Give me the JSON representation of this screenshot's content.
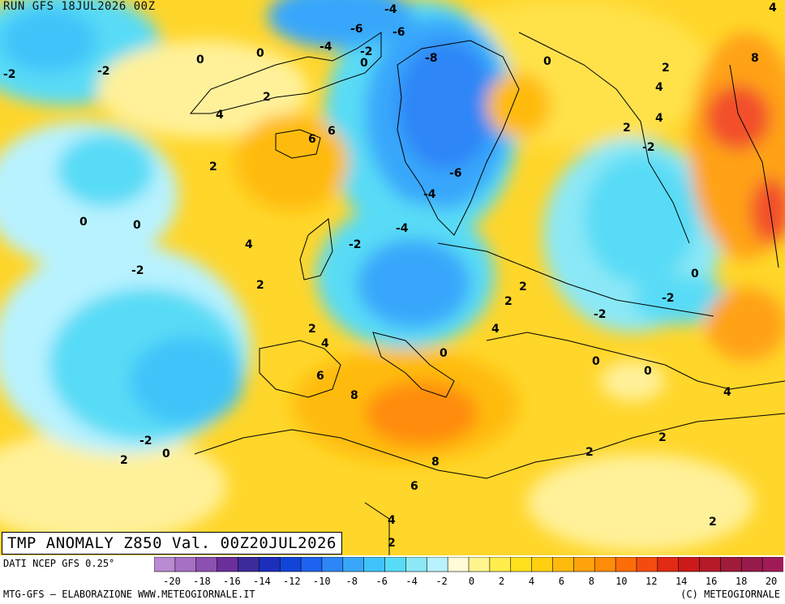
{
  "header": {
    "run_label": "RUN GFS 18JUL2026 00Z"
  },
  "map": {
    "variable_title": "TMP ANOMALY Z850 Val. 00Z20JUL2026",
    "isoline_labels": [
      "-4",
      "-6",
      "-6",
      "-4",
      "-2",
      "0",
      "-8",
      "-2",
      "0",
      "0",
      "0",
      "2",
      "4",
      "6",
      "6",
      "2",
      "4",
      "2",
      "4",
      "2",
      "-4",
      "-4",
      "-2",
      "-6",
      "-2",
      "4",
      "0",
      "0",
      "-2",
      "2",
      "-2",
      "0",
      "2",
      "2",
      "4",
      "0",
      "-2",
      "2",
      "0",
      "6",
      "8",
      "8",
      "6",
      "4",
      "2",
      "-2",
      "0",
      "2",
      "0",
      "2",
      "2",
      "-2",
      "4",
      "4",
      "8",
      "2",
      "4"
    ],
    "colors": {
      "very_cold": "#4fa0ff",
      "cold": "#2bd0ff",
      "cool": "#b8f2ff",
      "neutral": "#f4ef9c",
      "warm": "#ffd01a",
      "warmer": "#ffa214",
      "hot": "#f2502a",
      "borders": "#000000"
    }
  },
  "legend": {
    "source": "DATI NCEP GFS 0.25°",
    "ticks": [
      "-20",
      "-18",
      "-16",
      "-14",
      "-12",
      "-10",
      "-8",
      "-6",
      "-4",
      "-2",
      "0",
      "2",
      "4",
      "6",
      "8",
      "10",
      "12",
      "14",
      "16",
      "18",
      "20"
    ],
    "bins": [
      "#b88bd2",
      "#a571c4",
      "#8c51b0",
      "#6a2f9a",
      "#3b2b9b",
      "#1c2fbb",
      "#1344d9",
      "#1e63ef",
      "#2d86f7",
      "#38a7fb",
      "#3fc4f9",
      "#58dbf6",
      "#8be8f6",
      "#b8f2ff",
      "#fffbd6",
      "#fff58f",
      "#ffee4c",
      "#ffe21c",
      "#ffd010",
      "#ffbb0c",
      "#ffa40b",
      "#ff8c08",
      "#ff6d0a",
      "#f44b10",
      "#e22a14",
      "#cc1a1a",
      "#b41a28",
      "#a01a3a",
      "#961b4a",
      "#a01a58"
    ]
  },
  "footer": {
    "left_credit": "MTG-GFS — ELABORAZIONE WWW.METEOGIORNALE.IT",
    "right_credit": "(C) METEOGIORNALE"
  }
}
